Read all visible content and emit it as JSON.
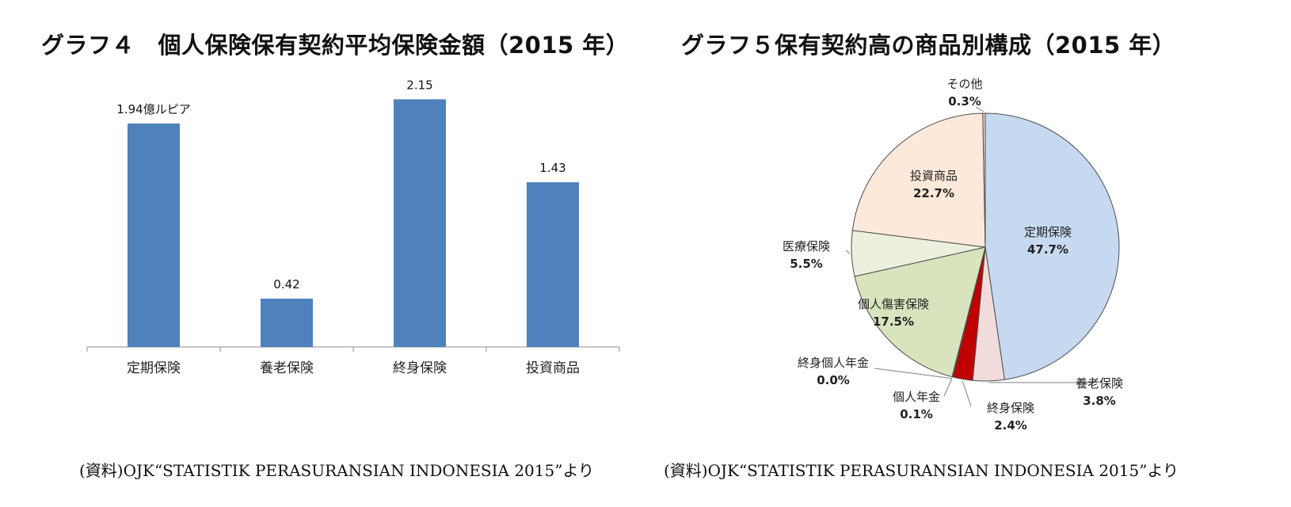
{
  "titles": {
    "left": "グラフ４　個人保険保有契約平均保険金額（2015 年）",
    "right": "グラフ５保有契約高の商品別構成（2015 年）"
  },
  "sources": {
    "left": "(資料)OJK“STATISTIK PERASURANSIAN INDONESIA 2015”より",
    "right": "(資料)OJK“STATISTIK PERASURANSIAN INDONESIA 2015”より"
  },
  "chart_data": [
    {
      "type": "bar",
      "title": "グラフ４　個人保険保有契約平均保険金額（2015 年）",
      "categories": [
        "定期保険",
        "養老保険",
        "終身保険",
        "投資商品"
      ],
      "values": [
        1.94,
        0.42,
        2.15,
        1.43
      ],
      "value_labels": [
        "1.94億ルピア",
        "0.42",
        "2.15",
        "1.43"
      ],
      "unit": "億ルピア",
      "ylim": [
        0,
        2.4
      ],
      "grid": false,
      "color": "#4f81bd"
    },
    {
      "type": "pie",
      "title": "グラフ５保有契約高の商品別構成（2015 年）",
      "slices": [
        {
          "label": "定期保険",
          "value": 47.7,
          "value_label": "47.7%",
          "color": "#c6d9f1"
        },
        {
          "label": "養老保険",
          "value": 3.8,
          "value_label": "3.8%",
          "color": "#f2dcdb"
        },
        {
          "label": "終身保険",
          "value": 2.4,
          "value_label": "2.4%",
          "color": "#c00000"
        },
        {
          "label": "個人年金",
          "value": 0.1,
          "value_label": "0.1%",
          "color": "#ffffff"
        },
        {
          "label": "終身個人年金",
          "value": 0.0,
          "value_label": "0.0%",
          "color": "#ffffff"
        },
        {
          "label": "個人傷害保険",
          "value": 17.5,
          "value_label": "17.5%",
          "color": "#d7e4bd"
        },
        {
          "label": "医療保険",
          "value": 5.5,
          "value_label": "5.5%",
          "color": "#ebf1de"
        },
        {
          "label": "投資商品",
          "value": 22.7,
          "value_label": "22.7%",
          "color": "#fde9d9"
        },
        {
          "label": "その他",
          "value": 0.3,
          "value_label": "0.3%",
          "color": "#d9d9d9"
        }
      ]
    }
  ]
}
